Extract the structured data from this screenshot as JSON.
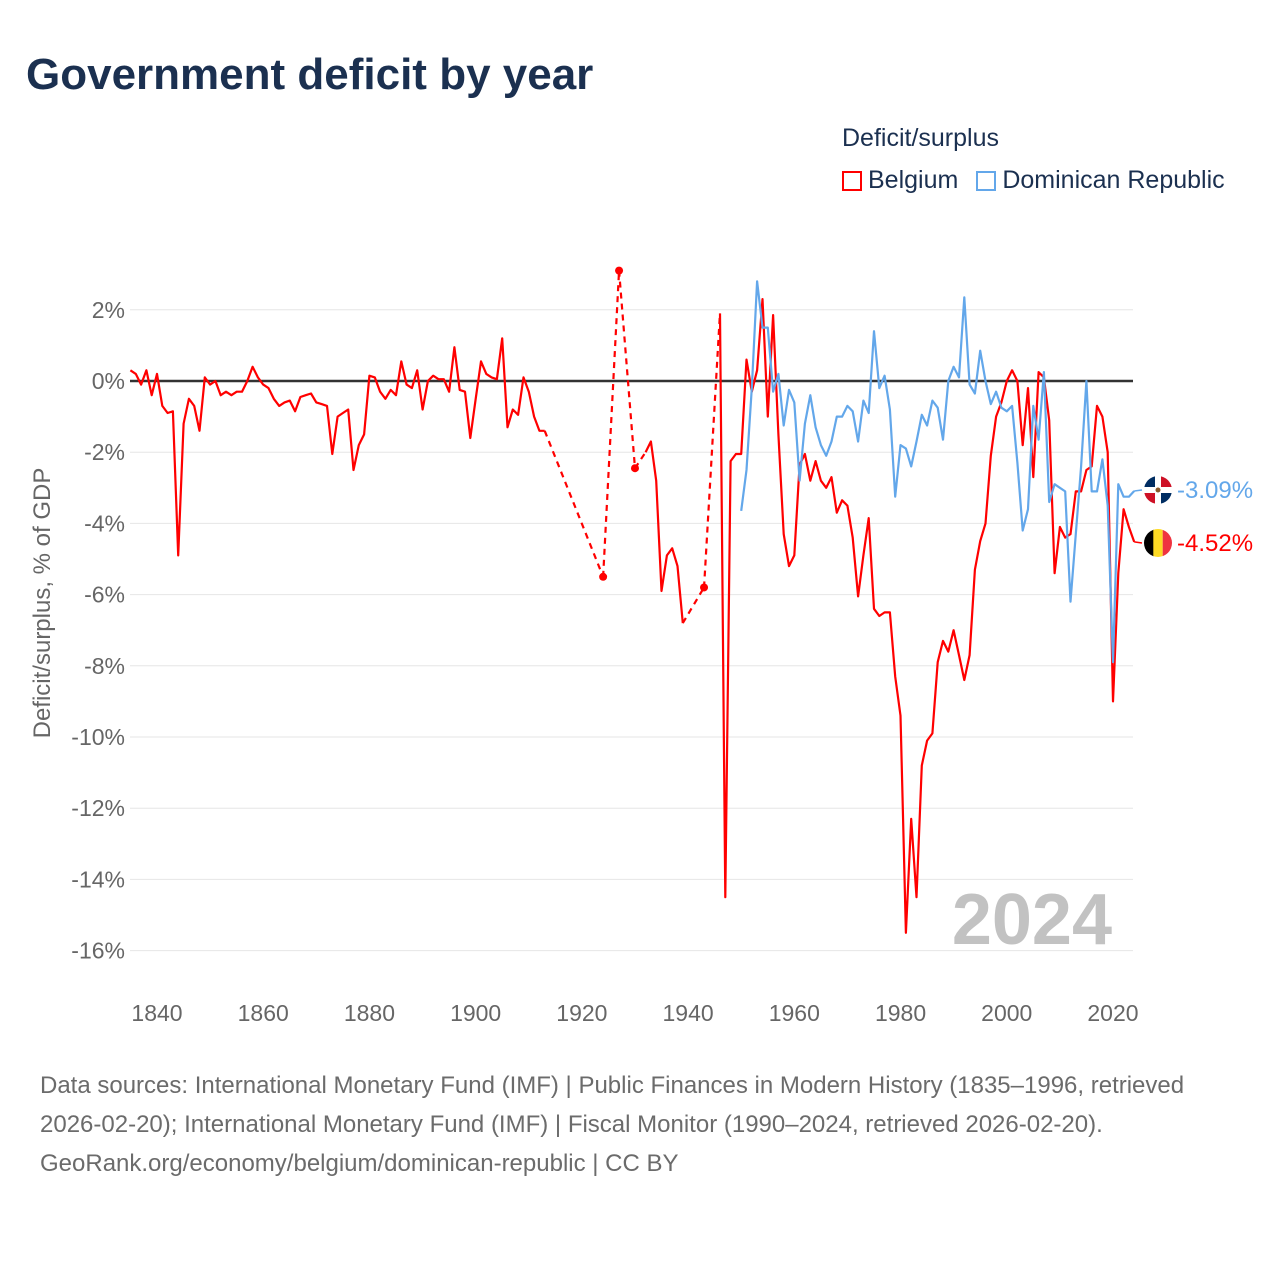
{
  "title": "Government deficit by year",
  "legend": {
    "title": "Deficit/surplus",
    "items": [
      {
        "label": "Belgium",
        "color": "#ff0000"
      },
      {
        "label": "Dominican Republic",
        "color": "#63a7ea"
      }
    ]
  },
  "footer": {
    "sources": "Data sources: International Monetary Fund (IMF) | Public Finances in Modern History (1835–1996, retrieved 2026-02-20); International Monetary Fund (IMF) | Fiscal Monitor (1990–2024, retrieved 2026-02-20).",
    "link": "GeoRank.org/economy/belgium/dominican-republic | CC BY"
  },
  "chart_data": {
    "type": "line",
    "title": "Government deficit by year",
    "ylabel": "Deficit/surplus, % of GDP",
    "xlabel": "",
    "xlim": [
      1835,
      2024
    ],
    "ylim": [
      -17,
      3.5
    ],
    "xticks": [
      1840,
      1860,
      1880,
      1900,
      1920,
      1940,
      1960,
      1980,
      2000,
      2020
    ],
    "yticks": [
      2,
      0,
      -2,
      -4,
      -6,
      -8,
      -10,
      -12,
      -14,
      -16
    ],
    "ytick_labels": [
      "2%",
      "0%",
      "-2%",
      "-4%",
      "-6%",
      "-8%",
      "-10%",
      "-12%",
      "-14%",
      "-16%"
    ],
    "year_watermark": "2024",
    "series": [
      {
        "name": "Belgium",
        "color": "#ff0000",
        "end_label": "-4.52%",
        "points": [
          [
            1835,
            0.3
          ],
          [
            1836,
            0.2
          ],
          [
            1837,
            -0.1
          ],
          [
            1838,
            0.3
          ],
          [
            1839,
            -0.4
          ],
          [
            1840,
            0.2
          ],
          [
            1841,
            -0.7
          ],
          [
            1842,
            -0.9
          ],
          [
            1843,
            -0.85
          ],
          [
            1844,
            -4.9
          ],
          [
            1845,
            -1.2
          ],
          [
            1846,
            -0.5
          ],
          [
            1847,
            -0.7
          ],
          [
            1848,
            -1.4
          ],
          [
            1849,
            0.1
          ],
          [
            1850,
            -0.1
          ],
          [
            1851,
            0.0
          ],
          [
            1852,
            -0.4
          ],
          [
            1853,
            -0.3
          ],
          [
            1854,
            -0.4
          ],
          [
            1855,
            -0.3
          ],
          [
            1856,
            -0.3
          ],
          [
            1857,
            0.0
          ],
          [
            1858,
            0.4
          ],
          [
            1859,
            0.1
          ],
          [
            1860,
            -0.1
          ],
          [
            1861,
            -0.2
          ],
          [
            1862,
            -0.5
          ],
          [
            1863,
            -0.7
          ],
          [
            1864,
            -0.6
          ],
          [
            1865,
            -0.55
          ],
          [
            1866,
            -0.85
          ],
          [
            1867,
            -0.45
          ],
          [
            1868,
            -0.4
          ],
          [
            1869,
            -0.35
          ],
          [
            1870,
            -0.6
          ],
          [
            1871,
            -0.65
          ],
          [
            1872,
            -0.7
          ],
          [
            1873,
            -2.05
          ],
          [
            1874,
            -1.0
          ],
          [
            1875,
            -0.9
          ],
          [
            1876,
            -0.8
          ],
          [
            1877,
            -2.5
          ],
          [
            1878,
            -1.8
          ],
          [
            1879,
            -1.5
          ],
          [
            1880,
            0.15
          ],
          [
            1881,
            0.1
          ],
          [
            1882,
            -0.3
          ],
          [
            1883,
            -0.5
          ],
          [
            1884,
            -0.25
          ],
          [
            1885,
            -0.4
          ],
          [
            1886,
            0.55
          ],
          [
            1887,
            -0.1
          ],
          [
            1888,
            -0.2
          ],
          [
            1889,
            0.3
          ],
          [
            1890,
            -0.8
          ],
          [
            1891,
            0.0
          ],
          [
            1892,
            0.15
          ],
          [
            1893,
            0.05
          ],
          [
            1894,
            0.05
          ],
          [
            1895,
            -0.3
          ],
          [
            1896,
            0.95
          ],
          [
            1897,
            -0.25
          ],
          [
            1898,
            -0.3
          ],
          [
            1899,
            -1.6
          ],
          [
            1900,
            -0.5
          ],
          [
            1901,
            0.55
          ],
          [
            1902,
            0.2
          ],
          [
            1903,
            0.1
          ],
          [
            1904,
            0.05
          ],
          [
            1905,
            1.2
          ],
          [
            1906,
            -1.3
          ],
          [
            1907,
            -0.8
          ],
          [
            1908,
            -0.95
          ],
          [
            1909,
            0.1
          ],
          [
            1910,
            -0.3
          ],
          [
            1911,
            -1.0
          ],
          [
            1912,
            -1.4
          ],
          [
            1913,
            -1.4
          ],
          [
            1924,
            -5.5
          ],
          [
            1927,
            3.1
          ],
          [
            1930,
            -2.45
          ],
          [
            1932,
            -2.0
          ],
          [
            1933,
            -1.7
          ],
          [
            1934,
            -2.8
          ],
          [
            1935,
            -5.9
          ],
          [
            1936,
            -4.9
          ],
          [
            1937,
            -4.7
          ],
          [
            1938,
            -5.2
          ],
          [
            1939,
            -6.8
          ],
          [
            1943,
            -5.8
          ],
          [
            1946,
            1.9
          ],
          [
            1947,
            -14.5
          ],
          [
            1948,
            -2.25
          ],
          [
            1949,
            -2.05
          ],
          [
            1950,
            -2.05
          ],
          [
            1951,
            0.6
          ],
          [
            1952,
            -0.3
          ],
          [
            1953,
            0.3
          ],
          [
            1954,
            2.3
          ],
          [
            1955,
            -1.0
          ],
          [
            1956,
            1.85
          ],
          [
            1957,
            -1.5
          ],
          [
            1958,
            -4.3
          ],
          [
            1959,
            -5.2
          ],
          [
            1960,
            -4.9
          ],
          [
            1961,
            -2.35
          ],
          [
            1962,
            -2.05
          ],
          [
            1963,
            -2.8
          ],
          [
            1964,
            -2.25
          ],
          [
            1965,
            -2.8
          ],
          [
            1966,
            -3.0
          ],
          [
            1967,
            -2.7
          ],
          [
            1968,
            -3.7
          ],
          [
            1969,
            -3.35
          ],
          [
            1970,
            -3.5
          ],
          [
            1971,
            -4.4
          ],
          [
            1972,
            -6.05
          ],
          [
            1973,
            -4.9
          ],
          [
            1974,
            -3.85
          ],
          [
            1975,
            -6.4
          ],
          [
            1976,
            -6.6
          ],
          [
            1977,
            -6.5
          ],
          [
            1978,
            -6.5
          ],
          [
            1979,
            -8.3
          ],
          [
            1980,
            -9.4
          ],
          [
            1981,
            -15.5
          ],
          [
            1982,
            -12.3
          ],
          [
            1983,
            -14.5
          ],
          [
            1984,
            -10.8
          ],
          [
            1985,
            -10.1
          ],
          [
            1986,
            -9.9
          ],
          [
            1987,
            -7.9
          ],
          [
            1988,
            -7.3
          ],
          [
            1989,
            -7.6
          ],
          [
            1990,
            -7.0
          ],
          [
            1991,
            -7.7
          ],
          [
            1992,
            -8.4
          ],
          [
            1993,
            -7.7
          ],
          [
            1994,
            -5.3
          ],
          [
            1995,
            -4.5
          ],
          [
            1996,
            -4.0
          ],
          [
            1997,
            -2.1
          ],
          [
            1998,
            -1.0
          ],
          [
            1999,
            -0.6
          ],
          [
            2000,
            0.0
          ],
          [
            2001,
            0.3
          ],
          [
            2002,
            0.0
          ],
          [
            2003,
            -1.8
          ],
          [
            2004,
            -0.2
          ],
          [
            2005,
            -2.7
          ],
          [
            2006,
            0.25
          ],
          [
            2007,
            0.1
          ],
          [
            2008,
            -1.1
          ],
          [
            2009,
            -5.4
          ],
          [
            2010,
            -4.1
          ],
          [
            2011,
            -4.4
          ],
          [
            2012,
            -4.3
          ],
          [
            2013,
            -3.1
          ],
          [
            2014,
            -3.1
          ],
          [
            2015,
            -2.5
          ],
          [
            2016,
            -2.4
          ],
          [
            2017,
            -0.7
          ],
          [
            2018,
            -1.0
          ],
          [
            2019,
            -2.0
          ],
          [
            2020,
            -9.0
          ],
          [
            2021,
            -5.4
          ],
          [
            2022,
            -3.6
          ],
          [
            2023,
            -4.1
          ],
          [
            2024,
            -4.52
          ]
        ]
      },
      {
        "name": "Dominican Republic",
        "color": "#63a7ea",
        "end_label": "-3.09%",
        "points": [
          [
            1950,
            -3.65
          ],
          [
            1951,
            -2.5
          ],
          [
            1952,
            -0.2
          ],
          [
            1953,
            2.8
          ],
          [
            1954,
            1.5
          ],
          [
            1955,
            1.5
          ],
          [
            1956,
            -0.3
          ],
          [
            1957,
            0.2
          ],
          [
            1958,
            -1.25
          ],
          [
            1959,
            -0.25
          ],
          [
            1960,
            -0.6
          ],
          [
            1961,
            -2.8
          ],
          [
            1962,
            -1.2
          ],
          [
            1963,
            -0.4
          ],
          [
            1964,
            -1.3
          ],
          [
            1965,
            -1.8
          ],
          [
            1966,
            -2.1
          ],
          [
            1967,
            -1.7
          ],
          [
            1968,
            -1.0
          ],
          [
            1969,
            -1.0
          ],
          [
            1970,
            -0.7
          ],
          [
            1971,
            -0.85
          ],
          [
            1972,
            -1.7
          ],
          [
            1973,
            -0.55
          ],
          [
            1974,
            -0.9
          ],
          [
            1975,
            1.4
          ],
          [
            1976,
            -0.2
          ],
          [
            1977,
            0.15
          ],
          [
            1978,
            -0.8
          ],
          [
            1979,
            -3.25
          ],
          [
            1980,
            -1.8
          ],
          [
            1981,
            -1.9
          ],
          [
            1982,
            -2.4
          ],
          [
            1983,
            -1.7
          ],
          [
            1984,
            -0.95
          ],
          [
            1985,
            -1.25
          ],
          [
            1986,
            -0.55
          ],
          [
            1987,
            -0.75
          ],
          [
            1988,
            -1.65
          ],
          [
            1989,
            0.0
          ],
          [
            1990,
            0.4
          ],
          [
            1991,
            0.1
          ],
          [
            1992,
            2.35
          ],
          [
            1993,
            -0.1
          ],
          [
            1994,
            -0.35
          ],
          [
            1995,
            0.85
          ],
          [
            1996,
            0.0
          ],
          [
            1997,
            -0.65
          ],
          [
            1998,
            -0.3
          ],
          [
            1999,
            -0.75
          ],
          [
            2000,
            -0.85
          ],
          [
            2001,
            -0.7
          ],
          [
            2002,
            -2.3
          ],
          [
            2003,
            -4.2
          ],
          [
            2004,
            -3.6
          ],
          [
            2005,
            -0.7
          ],
          [
            2006,
            -1.65
          ],
          [
            2007,
            0.25
          ],
          [
            2008,
            -3.4
          ],
          [
            2009,
            -2.9
          ],
          [
            2010,
            -3.0
          ],
          [
            2011,
            -3.1
          ],
          [
            2012,
            -6.2
          ],
          [
            2013,
            -4.3
          ],
          [
            2014,
            -2.4
          ],
          [
            2015,
            0.0
          ],
          [
            2016,
            -3.1
          ],
          [
            2017,
            -3.1
          ],
          [
            2018,
            -2.2
          ],
          [
            2019,
            -3.5
          ],
          [
            2020,
            -7.9
          ],
          [
            2021,
            -2.9
          ],
          [
            2022,
            -3.25
          ],
          [
            2023,
            -3.25
          ],
          [
            2024,
            -3.09
          ]
        ]
      }
    ]
  }
}
